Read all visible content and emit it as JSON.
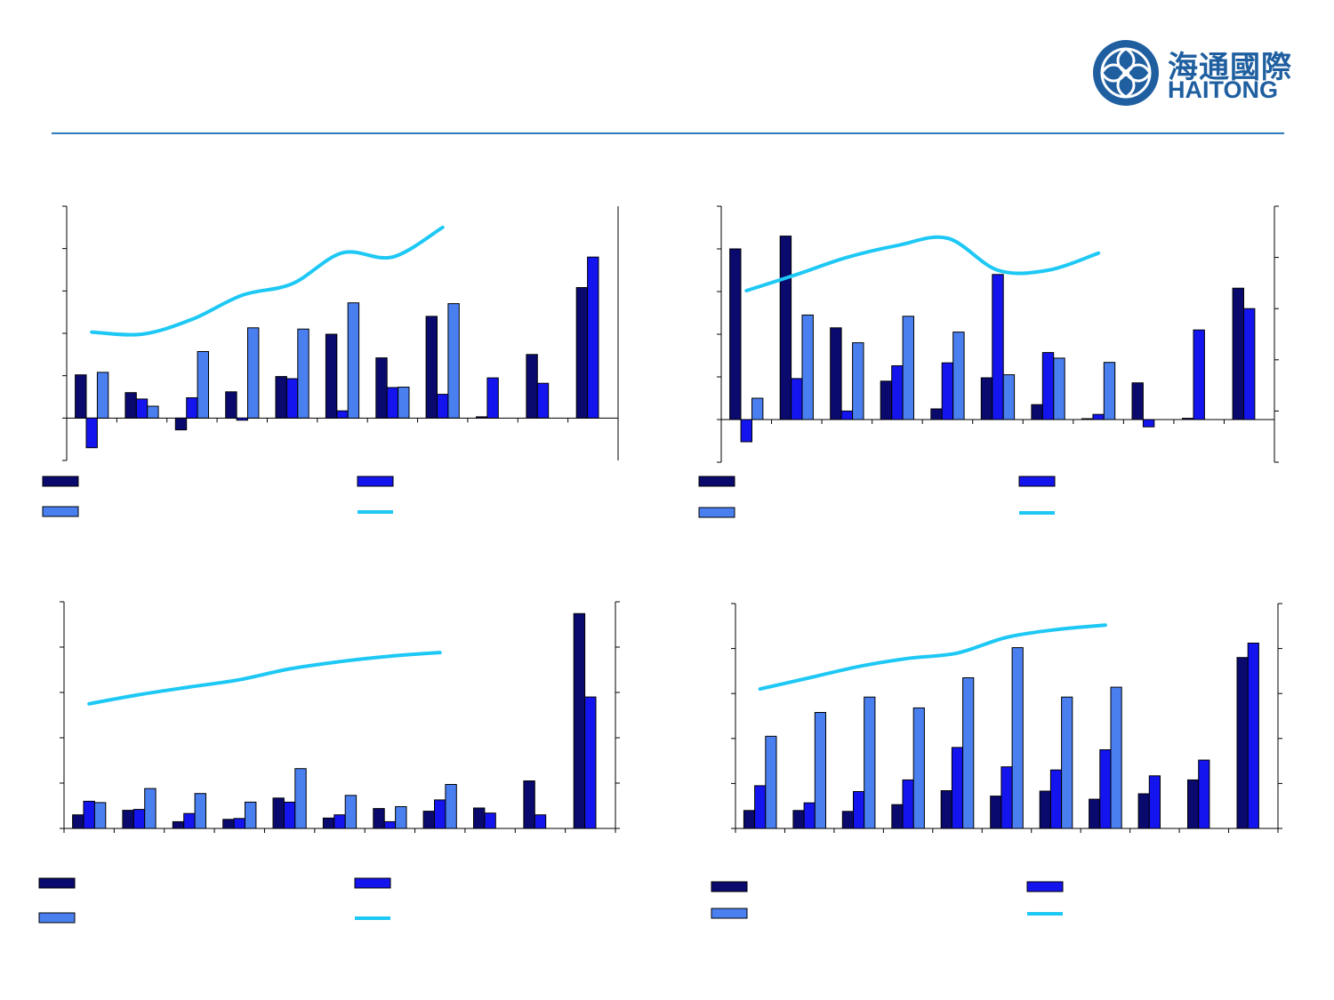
{
  "logo": {
    "cn": "海通國際",
    "en": "HAITONG"
  },
  "colors": {
    "series_a": "#0a0a6e",
    "series_b": "#1414ee",
    "series_c": "#4a7ff0",
    "line": "#1ec8f5",
    "rule": "#2e7cbf",
    "brand": "#1f5fa0"
  },
  "chart_data": [
    {
      "type": "bar",
      "panel": "top-left",
      "categories": [
        "",
        "",
        "",
        "",
        "",
        "",
        "",
        "",
        "",
        "",
        ""
      ],
      "ylim": [
        -1,
        5
      ],
      "series": [
        {
          "values": [
            1.02,
            0.6,
            -0.28,
            0.62,
            0.98,
            1.98,
            1.42,
            2.4,
            0.03,
            1.5,
            3.08
          ]
        },
        {
          "values": [
            -0.7,
            0.45,
            0.48,
            -0.05,
            0.93,
            0.17,
            0.72,
            0.56,
            0.95,
            0.82,
            3.8
          ]
        },
        {
          "values": [
            1.08,
            0.28,
            1.57,
            2.13,
            2.1,
            2.72,
            0.73,
            2.7,
            null,
            null,
            null
          ]
        }
      ],
      "line": {
        "values": [
          2.03,
          1.98,
          2.33,
          2.9,
          3.17,
          3.9,
          3.8,
          4.5
        ]
      },
      "legend": {
        "position": "bottom",
        "entries": [
          "",
          "",
          "",
          ""
        ]
      }
    },
    {
      "type": "bar",
      "panel": "top-right",
      "categories": [
        "",
        "",
        "",
        "",
        "",
        "",
        "",
        "",
        "",
        "",
        ""
      ],
      "ylim": [
        -1,
        5
      ],
      "series": [
        {
          "values": [
            4.0,
            4.3,
            2.15,
            0.9,
            0.25,
            0.98,
            0.35,
            0.02,
            0.86,
            0.03,
            3.08
          ]
        },
        {
          "values": [
            -0.52,
            0.96,
            0.2,
            1.26,
            1.33,
            3.4,
            1.57,
            0.12,
            -0.17,
            2.1,
            2.6
          ]
        },
        {
          "values": [
            0.5,
            2.45,
            1.8,
            2.42,
            2.05,
            1.05,
            1.44,
            1.34,
            null,
            null,
            null
          ]
        }
      ],
      "line": {
        "values": [
          3.02,
          3.4,
          3.8,
          4.08,
          4.25,
          3.5,
          3.5,
          3.9
        ]
      },
      "legend": {
        "position": "bottom",
        "entries": [
          "",
          "",
          "",
          ""
        ]
      }
    },
    {
      "type": "bar",
      "panel": "bottom-left",
      "categories": [
        "",
        "",
        "",
        "",
        "",
        "",
        "",
        "",
        "",
        "",
        ""
      ],
      "ylim": [
        0,
        5
      ],
      "series": [
        {
          "values": [
            0.3,
            0.4,
            0.15,
            0.2,
            0.67,
            0.23,
            0.44,
            0.38,
            0.45,
            1.05,
            4.74
          ]
        },
        {
          "values": [
            0.6,
            0.42,
            0.33,
            0.22,
            0.58,
            0.3,
            0.15,
            0.63,
            0.34,
            0.3,
            2.9
          ]
        },
        {
          "values": [
            0.57,
            0.88,
            0.77,
            0.58,
            1.32,
            0.73,
            0.48,
            0.97,
            null,
            null,
            null
          ]
        }
      ],
      "line": {
        "values": [
          2.75,
          2.95,
          3.12,
          3.28,
          3.52,
          3.68,
          3.8,
          3.88
        ]
      },
      "legend": {
        "position": "bottom",
        "entries": [
          "",
          "",
          "",
          ""
        ]
      }
    },
    {
      "type": "bar",
      "panel": "bottom-right",
      "categories": [
        "",
        "",
        "",
        "",
        "",
        "",
        "",
        "",
        "",
        "",
        ""
      ],
      "ylim": [
        0,
        5
      ],
      "series": [
        {
          "values": [
            0.4,
            0.4,
            0.38,
            0.53,
            0.84,
            0.72,
            0.83,
            0.65,
            0.77,
            1.08,
            3.8
          ]
        },
        {
          "values": [
            0.95,
            0.57,
            0.82,
            1.08,
            1.8,
            1.37,
            1.3,
            1.75,
            1.17,
            1.52,
            4.12
          ]
        },
        {
          "values": [
            2.05,
            2.58,
            2.92,
            2.68,
            3.35,
            4.02,
            2.92,
            3.14,
            null,
            null,
            null
          ]
        }
      ],
      "line": {
        "values": [
          3.1,
          3.35,
          3.6,
          3.78,
          3.9,
          4.25,
          4.42,
          4.52
        ]
      },
      "legend": {
        "position": "bottom",
        "entries": [
          "",
          "",
          "",
          ""
        ]
      }
    }
  ]
}
